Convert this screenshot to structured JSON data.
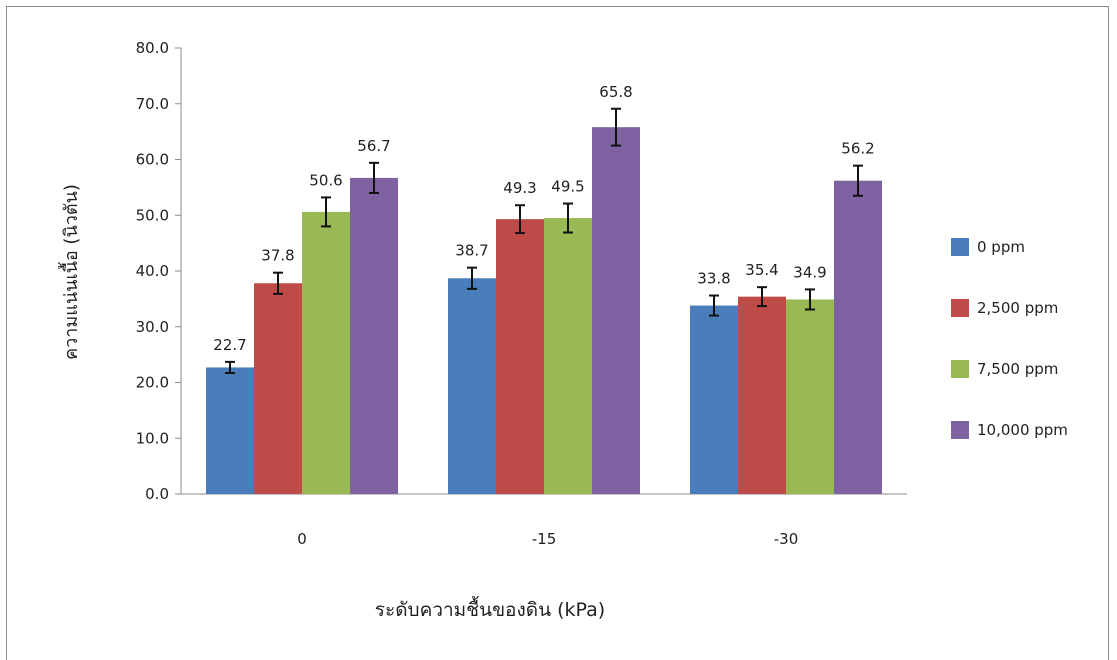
{
  "chart_data": {
    "type": "bar",
    "categories": [
      "0",
      "-15",
      "-30"
    ],
    "series": [
      {
        "name": "0 ppm",
        "color": "#4a7ebb",
        "values": [
          22.7,
          38.7,
          33.8
        ],
        "errors": [
          1.0,
          1.9,
          1.8
        ]
      },
      {
        "name": "2,500 ppm",
        "color": "#be4b48",
        "values": [
          37.8,
          49.3,
          35.4
        ],
        "errors": [
          1.9,
          2.5,
          1.7
        ]
      },
      {
        "name": "7,500 ppm",
        "color": "#98b954",
        "values": [
          50.6,
          49.5,
          34.9
        ],
        "errors": [
          2.6,
          2.6,
          1.8
        ]
      },
      {
        "name": "10,000 ppm",
        "color": "#7e62a1",
        "values": [
          56.7,
          65.8,
          56.2
        ],
        "errors": [
          2.7,
          3.3,
          2.7
        ]
      }
    ],
    "data_labels": [
      [
        "22.7",
        "38.7",
        "33.8"
      ],
      [
        "37.8",
        "49.3",
        "35.4"
      ],
      [
        "50.6",
        "49.5",
        "34.9"
      ],
      [
        "56.7",
        "65.8",
        "56.2"
      ]
    ],
    "yticks": [
      "0.0",
      "10.0",
      "20.0",
      "30.0",
      "40.0",
      "50.0",
      "60.0",
      "70.0",
      "80.0"
    ],
    "ylim": [
      0,
      80
    ],
    "xlabel": "ระดับความชื้นของดิน (kPa)",
    "ylabel": "ความแน่นเนื้อ (นิวตัน)",
    "legend_position": "right",
    "grid": false
  }
}
